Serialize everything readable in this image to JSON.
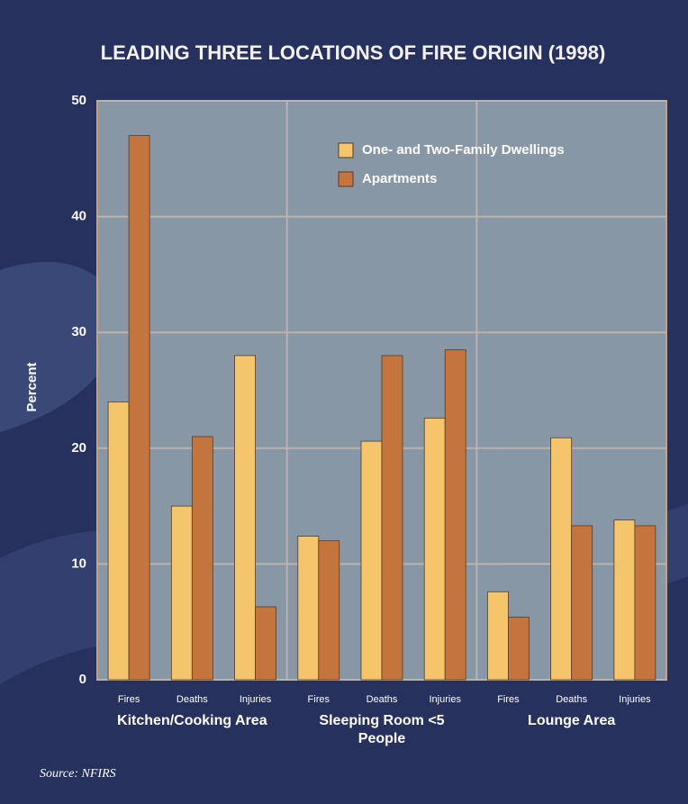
{
  "chart_data": {
    "type": "bar",
    "title": "LEADING THREE LOCATIONS OF FIRE ORIGIN (1998)",
    "y_label": "Percent",
    "source": "Source: NFIRS",
    "categories": [
      "Fires",
      "Deaths",
      "Injuries",
      "Fires",
      "Deaths",
      "Injuries",
      "Fires",
      "Deaths",
      "Injuries"
    ],
    "groups": [
      "Kitchen/Cooking Area",
      "Sleeping Room <5 People",
      "Lounge Area"
    ],
    "series": [
      {
        "name": "One- and Two-Family Dwellings",
        "color": "#f4c56a",
        "values": [
          24,
          15,
          28,
          12.4,
          20.6,
          22.6,
          7.6,
          20.9,
          13.8
        ]
      },
      {
        "name": "Apartments",
        "color": "#c4753d",
        "values": [
          47,
          21,
          6.3,
          12,
          28,
          28.5,
          5.4,
          13.3,
          13.3
        ]
      }
    ],
    "ylim": [
      0,
      50
    ],
    "yticks": [
      0,
      10,
      20,
      30,
      40,
      50
    ],
    "grid": true
  }
}
